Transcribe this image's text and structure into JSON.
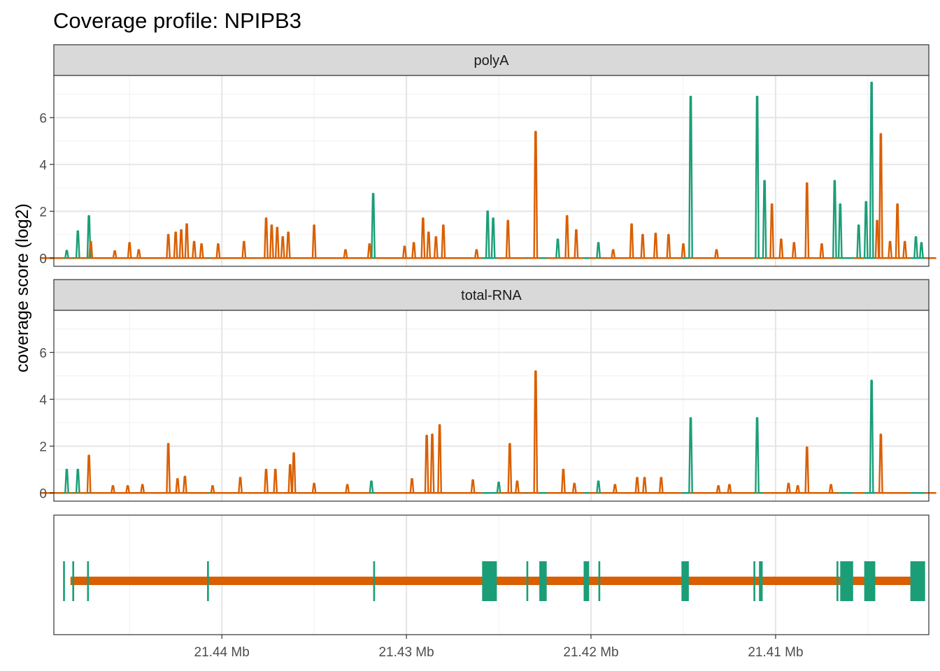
{
  "chart_data": {
    "type": "line",
    "title": "Coverage profile: NPIPB3",
    "ylabel": "coverage score (log2)",
    "xlabel": "",
    "colors": {
      "exon": "#1B9E77",
      "intron": "#D95F02"
    },
    "x_axis": {
      "reversed": true,
      "unit": "Mb",
      "range": [
        21.4491,
        21.4017
      ],
      "ticks": [
        21.44,
        21.43,
        21.42,
        21.41
      ],
      "tick_labels": [
        "21.44 Mb",
        "21.43 Mb",
        "21.42 Mb",
        "21.41 Mb"
      ]
    },
    "y_axis": {
      "range": [
        -0.35,
        7.8
      ],
      "ticks": [
        0,
        2,
        4,
        6
      ],
      "tick_labels": [
        "0",
        "2",
        "4",
        "6"
      ]
    },
    "grid": true,
    "facets": [
      {
        "label": "polyA",
        "peaks": [
          {
            "pos": 21.4484,
            "height": 0.32,
            "region": "exon"
          },
          {
            "pos": 21.4478,
            "height": 1.15,
            "region": "exon"
          },
          {
            "pos": 21.4472,
            "height": 1.8,
            "region": "exon"
          },
          {
            "pos": 21.4471,
            "height": 0.7,
            "region": "intron"
          },
          {
            "pos": 21.4458,
            "height": 0.3,
            "region": "intron"
          },
          {
            "pos": 21.445,
            "height": 0.65,
            "region": "intron"
          },
          {
            "pos": 21.4445,
            "height": 0.35,
            "region": "intron"
          },
          {
            "pos": 21.4429,
            "height": 1.0,
            "region": "intron"
          },
          {
            "pos": 21.4425,
            "height": 1.1,
            "region": "intron"
          },
          {
            "pos": 21.4422,
            "height": 1.2,
            "region": "intron"
          },
          {
            "pos": 21.4419,
            "height": 1.45,
            "region": "intron"
          },
          {
            "pos": 21.4415,
            "height": 0.7,
            "region": "intron"
          },
          {
            "pos": 21.4411,
            "height": 0.6,
            "region": "intron"
          },
          {
            "pos": 21.4402,
            "height": 0.6,
            "region": "intron"
          },
          {
            "pos": 21.4388,
            "height": 0.7,
            "region": "intron"
          },
          {
            "pos": 21.4376,
            "height": 1.7,
            "region": "intron"
          },
          {
            "pos": 21.4373,
            "height": 1.4,
            "region": "intron"
          },
          {
            "pos": 21.437,
            "height": 1.3,
            "region": "intron"
          },
          {
            "pos": 21.4367,
            "height": 0.9,
            "region": "intron"
          },
          {
            "pos": 21.4364,
            "height": 1.1,
            "region": "intron"
          },
          {
            "pos": 21.435,
            "height": 1.4,
            "region": "intron"
          },
          {
            "pos": 21.4333,
            "height": 0.35,
            "region": "intron"
          },
          {
            "pos": 21.432,
            "height": 0.6,
            "region": "intron"
          },
          {
            "pos": 21.4318,
            "height": 2.75,
            "region": "exon"
          },
          {
            "pos": 21.4301,
            "height": 0.5,
            "region": "intron"
          },
          {
            "pos": 21.4296,
            "height": 0.65,
            "region": "intron"
          },
          {
            "pos": 21.4291,
            "height": 1.7,
            "region": "intron"
          },
          {
            "pos": 21.4288,
            "height": 1.1,
            "region": "intron"
          },
          {
            "pos": 21.4284,
            "height": 0.9,
            "region": "intron"
          },
          {
            "pos": 21.428,
            "height": 1.4,
            "region": "intron"
          },
          {
            "pos": 21.4262,
            "height": 0.35,
            "region": "intron"
          },
          {
            "pos": 21.4256,
            "height": 2.0,
            "region": "exon"
          },
          {
            "pos": 21.4253,
            "height": 1.7,
            "region": "exon"
          },
          {
            "pos": 21.4245,
            "height": 1.6,
            "region": "intron"
          },
          {
            "pos": 21.423,
            "height": 5.4,
            "region": "intron"
          },
          {
            "pos": 21.4218,
            "height": 0.8,
            "region": "exon"
          },
          {
            "pos": 21.4213,
            "height": 1.8,
            "region": "intron"
          },
          {
            "pos": 21.4208,
            "height": 1.2,
            "region": "intron"
          },
          {
            "pos": 21.4196,
            "height": 0.65,
            "region": "exon"
          },
          {
            "pos": 21.4188,
            "height": 0.35,
            "region": "intron"
          },
          {
            "pos": 21.4178,
            "height": 1.45,
            "region": "intron"
          },
          {
            "pos": 21.4172,
            "height": 1.0,
            "region": "intron"
          },
          {
            "pos": 21.4165,
            "height": 1.05,
            "region": "intron"
          },
          {
            "pos": 21.4158,
            "height": 1.0,
            "region": "intron"
          },
          {
            "pos": 21.415,
            "height": 0.6,
            "region": "intron"
          },
          {
            "pos": 21.4146,
            "height": 6.9,
            "region": "exon"
          },
          {
            "pos": 21.4132,
            "height": 0.35,
            "region": "intron"
          },
          {
            "pos": 21.411,
            "height": 6.9,
            "region": "exon"
          },
          {
            "pos": 21.4106,
            "height": 3.3,
            "region": "exon"
          },
          {
            "pos": 21.4102,
            "height": 2.3,
            "region": "intron"
          },
          {
            "pos": 21.4097,
            "height": 0.8,
            "region": "intron"
          },
          {
            "pos": 21.409,
            "height": 0.65,
            "region": "intron"
          },
          {
            "pos": 21.4083,
            "height": 3.2,
            "region": "intron"
          },
          {
            "pos": 21.4075,
            "height": 0.6,
            "region": "intron"
          },
          {
            "pos": 21.4068,
            "height": 3.3,
            "region": "exon"
          },
          {
            "pos": 21.4065,
            "height": 2.3,
            "region": "exon"
          },
          {
            "pos": 21.4055,
            "height": 1.4,
            "region": "exon"
          },
          {
            "pos": 21.4051,
            "height": 2.4,
            "region": "exon"
          },
          {
            "pos": 21.4048,
            "height": 7.5,
            "region": "exon"
          },
          {
            "pos": 21.4045,
            "height": 1.6,
            "region": "intron"
          },
          {
            "pos": 21.4043,
            "height": 5.3,
            "region": "intron"
          },
          {
            "pos": 21.4038,
            "height": 0.7,
            "region": "intron"
          },
          {
            "pos": 21.4034,
            "height": 2.3,
            "region": "intron"
          },
          {
            "pos": 21.403,
            "height": 0.7,
            "region": "intron"
          },
          {
            "pos": 21.4024,
            "height": 0.9,
            "region": "exon"
          },
          {
            "pos": 21.4021,
            "height": 0.65,
            "region": "exon"
          }
        ]
      },
      {
        "label": "total-RNA",
        "peaks": [
          {
            "pos": 21.4484,
            "height": 1.0,
            "region": "exon"
          },
          {
            "pos": 21.4478,
            "height": 1.0,
            "region": "exon"
          },
          {
            "pos": 21.4472,
            "height": 1.6,
            "region": "intron"
          },
          {
            "pos": 21.4459,
            "height": 0.3,
            "region": "intron"
          },
          {
            "pos": 21.4451,
            "height": 0.3,
            "region": "intron"
          },
          {
            "pos": 21.4443,
            "height": 0.35,
            "region": "intron"
          },
          {
            "pos": 21.4429,
            "height": 2.1,
            "region": "intron"
          },
          {
            "pos": 21.4424,
            "height": 0.6,
            "region": "intron"
          },
          {
            "pos": 21.442,
            "height": 0.7,
            "region": "intron"
          },
          {
            "pos": 21.4405,
            "height": 0.3,
            "region": "intron"
          },
          {
            "pos": 21.439,
            "height": 0.65,
            "region": "intron"
          },
          {
            "pos": 21.4376,
            "height": 1.0,
            "region": "intron"
          },
          {
            "pos": 21.4371,
            "height": 1.0,
            "region": "intron"
          },
          {
            "pos": 21.4363,
            "height": 1.2,
            "region": "intron"
          },
          {
            "pos": 21.4361,
            "height": 1.7,
            "region": "intron"
          },
          {
            "pos": 21.435,
            "height": 0.4,
            "region": "intron"
          },
          {
            "pos": 21.4332,
            "height": 0.35,
            "region": "intron"
          },
          {
            "pos": 21.4319,
            "height": 0.5,
            "region": "exon"
          },
          {
            "pos": 21.4297,
            "height": 0.6,
            "region": "intron"
          },
          {
            "pos": 21.4289,
            "height": 2.45,
            "region": "intron"
          },
          {
            "pos": 21.4286,
            "height": 2.5,
            "region": "intron"
          },
          {
            "pos": 21.4282,
            "height": 2.9,
            "region": "intron"
          },
          {
            "pos": 21.4264,
            "height": 0.55,
            "region": "intron"
          },
          {
            "pos": 21.425,
            "height": 0.45,
            "region": "exon"
          },
          {
            "pos": 21.4244,
            "height": 2.1,
            "region": "intron"
          },
          {
            "pos": 21.424,
            "height": 0.5,
            "region": "intron"
          },
          {
            "pos": 21.423,
            "height": 5.2,
            "region": "intron"
          },
          {
            "pos": 21.4215,
            "height": 1.0,
            "region": "intron"
          },
          {
            "pos": 21.4209,
            "height": 0.4,
            "region": "intron"
          },
          {
            "pos": 21.4196,
            "height": 0.5,
            "region": "exon"
          },
          {
            "pos": 21.4187,
            "height": 0.35,
            "region": "intron"
          },
          {
            "pos": 21.4175,
            "height": 0.65,
            "region": "intron"
          },
          {
            "pos": 21.4171,
            "height": 0.65,
            "region": "intron"
          },
          {
            "pos": 21.4162,
            "height": 0.65,
            "region": "intron"
          },
          {
            "pos": 21.4146,
            "height": 3.2,
            "region": "exon"
          },
          {
            "pos": 21.4131,
            "height": 0.3,
            "region": "intron"
          },
          {
            "pos": 21.4125,
            "height": 0.35,
            "region": "intron"
          },
          {
            "pos": 21.411,
            "height": 3.2,
            "region": "exon"
          },
          {
            "pos": 21.4093,
            "height": 0.4,
            "region": "intron"
          },
          {
            "pos": 21.4088,
            "height": 0.3,
            "region": "intron"
          },
          {
            "pos": 21.4083,
            "height": 1.95,
            "region": "intron"
          },
          {
            "pos": 21.407,
            "height": 0.35,
            "region": "intron"
          },
          {
            "pos": 21.4048,
            "height": 4.8,
            "region": "exon"
          },
          {
            "pos": 21.4043,
            "height": 2.5,
            "region": "intron"
          }
        ]
      }
    ],
    "gene_model": {
      "intron_span": [
        21.4482,
        21.4021
      ],
      "exons": [
        {
          "start": 21.4486,
          "end": 21.4485
        },
        {
          "start": 21.4481,
          "end": 21.448
        },
        {
          "start": 21.4473,
          "end": 21.4472
        },
        {
          "start": 21.4408,
          "end": 21.4407
        },
        {
          "start": 21.4318,
          "end": 21.4317
        },
        {
          "start": 21.4259,
          "end": 21.4251
        },
        {
          "start": 21.4235,
          "end": 21.4234
        },
        {
          "start": 21.4228,
          "end": 21.4224
        },
        {
          "start": 21.4204,
          "end": 21.4201
        },
        {
          "start": 21.4196,
          "end": 21.4195
        },
        {
          "start": 21.4151,
          "end": 21.4147
        },
        {
          "start": 21.4112,
          "end": 21.4111
        },
        {
          "start": 21.4109,
          "end": 21.4107
        },
        {
          "start": 21.4067,
          "end": 21.4066
        },
        {
          "start": 21.4065,
          "end": 21.4058
        },
        {
          "start": 21.4052,
          "end": 21.4046
        },
        {
          "start": 21.4027,
          "end": 21.4019
        }
      ]
    }
  }
}
